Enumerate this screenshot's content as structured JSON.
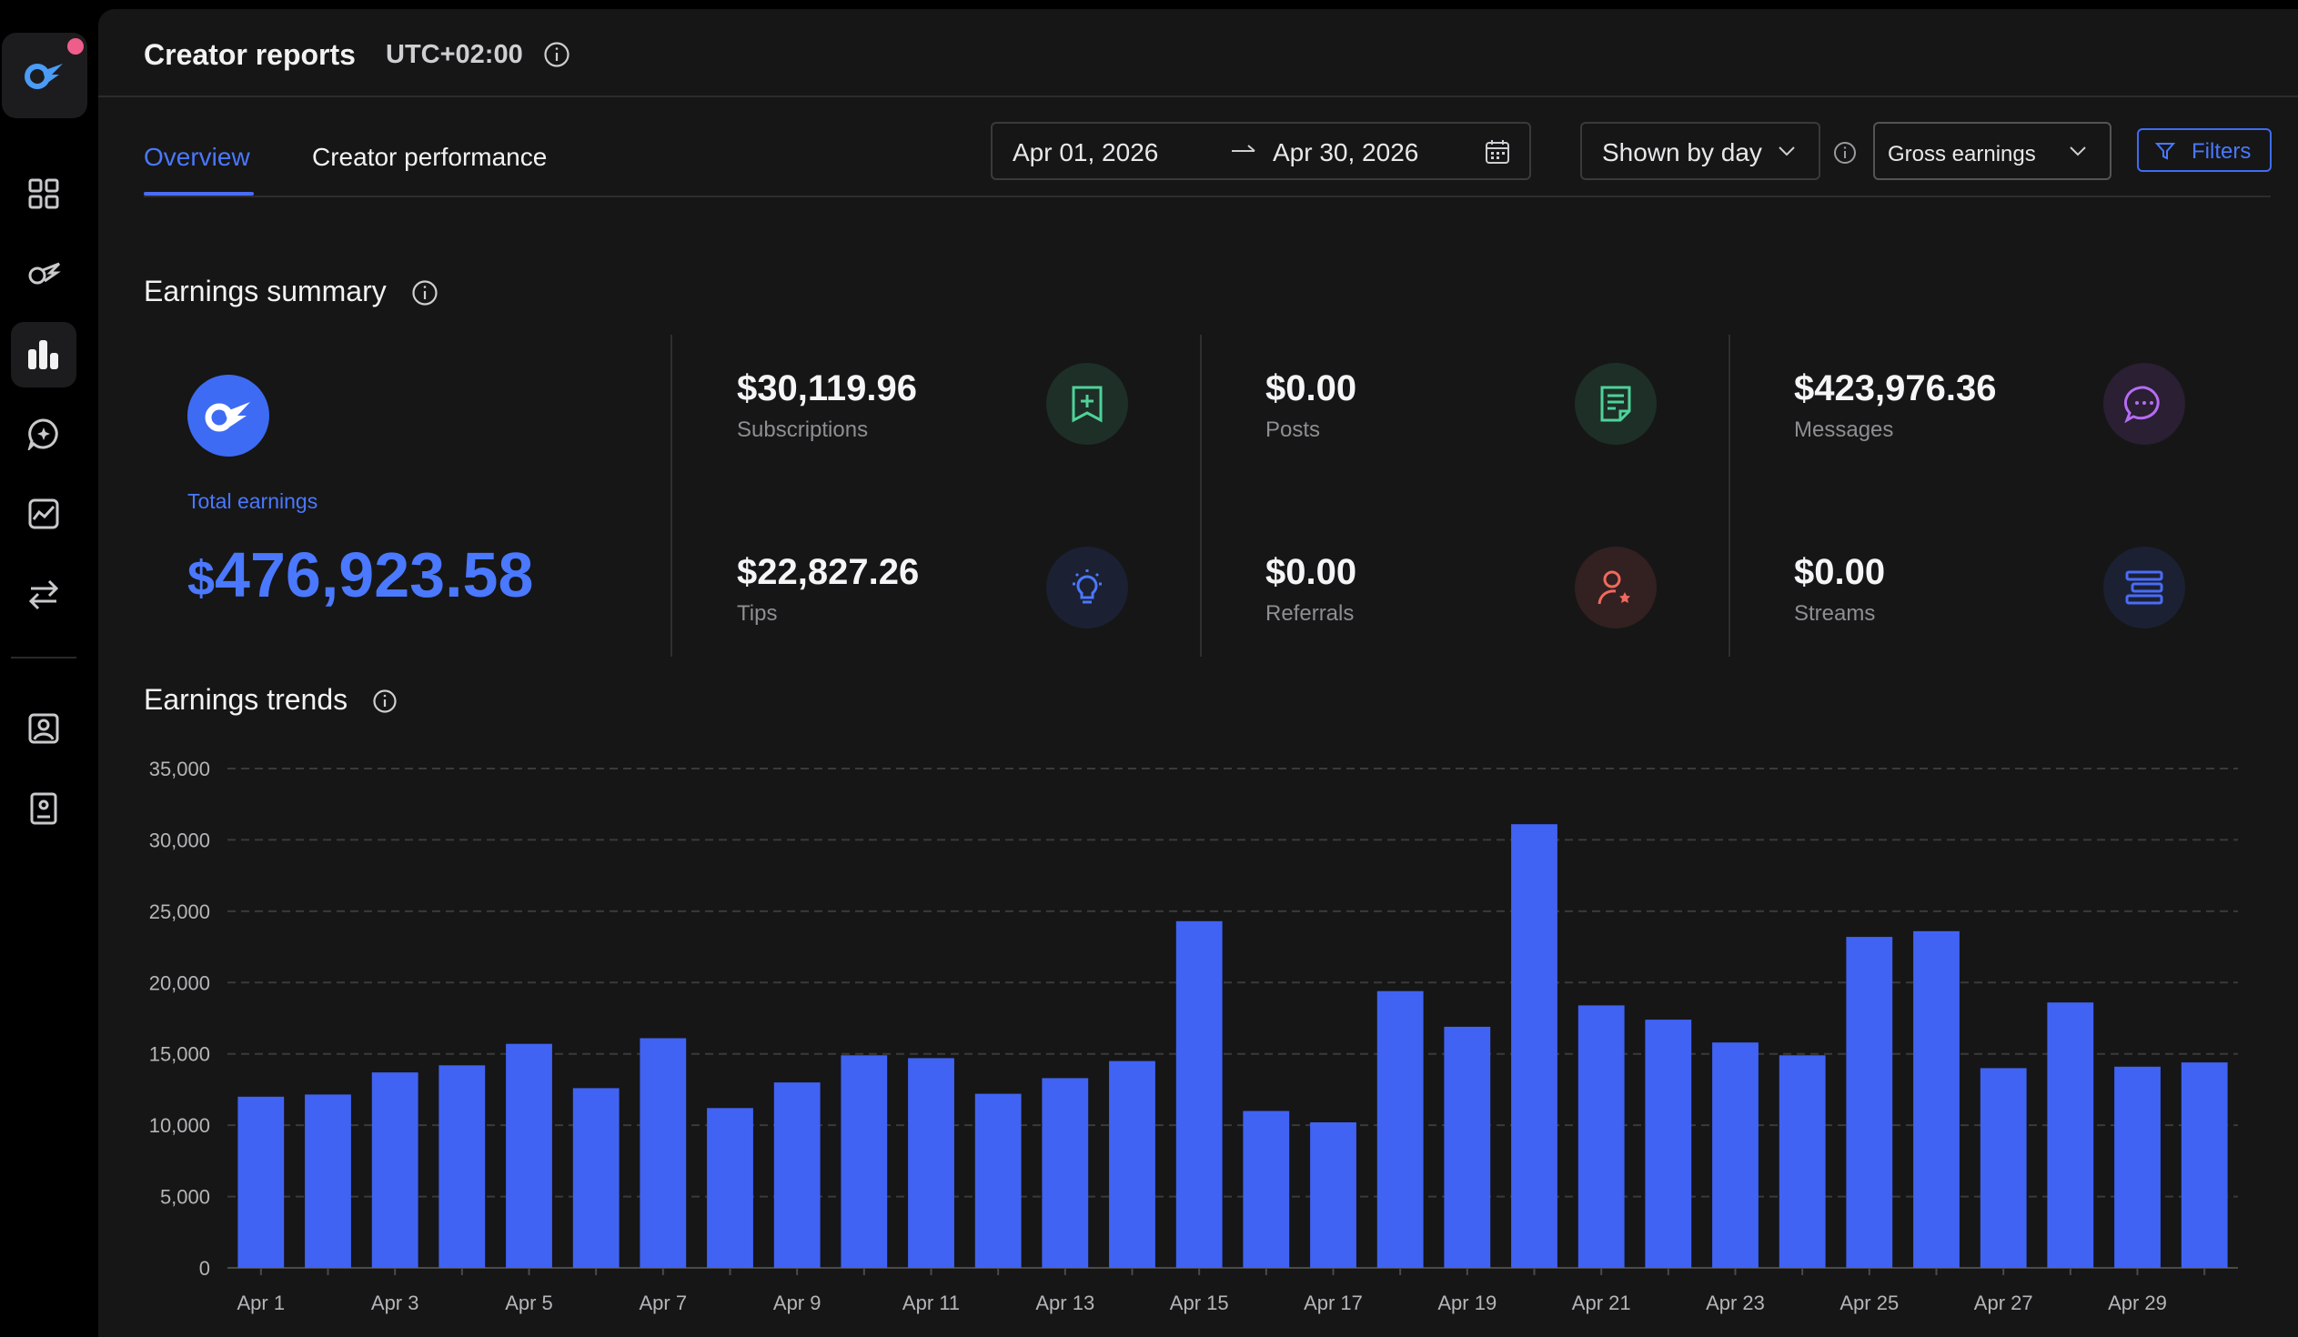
{
  "header": {
    "title": "Creator reports",
    "timezone": "UTC+02:00"
  },
  "tabs": [
    {
      "label": "Overview",
      "active": true
    },
    {
      "label": "Creator performance",
      "active": false
    }
  ],
  "date_range": {
    "from": "Apr 01, 2026",
    "to": "Apr 30, 2026"
  },
  "grouping": {
    "selected": "Shown by day"
  },
  "metric_select": {
    "selected": "Gross earnings"
  },
  "filters": {
    "label": "Filters"
  },
  "earnings_summary": {
    "title": "Earnings summary",
    "total": {
      "label": "Total earnings",
      "currency": "$",
      "value": "476,923.58"
    },
    "metrics": [
      {
        "label": "Subscriptions",
        "value": "$30,119.96",
        "icon": "subscription-icon",
        "color": "#4fd19a"
      },
      {
        "label": "Posts",
        "value": "$0.00",
        "icon": "document-icon",
        "color": "#4fd19a"
      },
      {
        "label": "Messages",
        "value": "$423,976.36",
        "icon": "chat-bubble-icon",
        "color": "#b56cf2"
      },
      {
        "label": "Tips",
        "value": "$22,827.26",
        "icon": "lightbulb-icon",
        "color": "#4a78ff"
      },
      {
        "label": "Referrals",
        "value": "$0.00",
        "icon": "user-star-icon",
        "color": "#ee6a5e"
      },
      {
        "label": "Streams",
        "value": "$0.00",
        "icon": "stream-icon",
        "color": "#4a6cf7"
      }
    ]
  },
  "earnings_trends": {
    "title": "Earnings trends"
  },
  "colors": {
    "accent": "#4a6cf7",
    "bar": "#4163f3",
    "background": "#161616"
  },
  "chart_data": {
    "type": "bar",
    "title": "",
    "xlabel": "",
    "ylabel": "",
    "ylim": [
      0,
      35000
    ],
    "yticks": [
      "0",
      "5,000",
      "10,000",
      "15,000",
      "20,000",
      "25,000",
      "30,000",
      "35,000"
    ],
    "grid": true,
    "categories": [
      "Apr 1",
      "Apr 2",
      "Apr 3",
      "Apr 4",
      "Apr 5",
      "Apr 6",
      "Apr 7",
      "Apr 8",
      "Apr 9",
      "Apr 10",
      "Apr 11",
      "Apr 12",
      "Apr 13",
      "Apr 14",
      "Apr 15",
      "Apr 16",
      "Apr 17",
      "Apr 18",
      "Apr 19",
      "Apr 20",
      "Apr 21",
      "Apr 22",
      "Apr 23",
      "Apr 24",
      "Apr 25",
      "Apr 26",
      "Apr 27",
      "Apr 28",
      "Apr 29",
      "Apr 30"
    ],
    "xtick_labels": [
      "Apr 1",
      "Apr 3",
      "Apr 5",
      "Apr 7",
      "Apr 9",
      "Apr 11",
      "Apr 13",
      "Apr 15",
      "Apr 17",
      "Apr 19",
      "Apr 21",
      "Apr 23",
      "Apr 25",
      "Apr 27",
      "Apr 29"
    ],
    "values": [
      12000,
      12150,
      13700,
      14200,
      15700,
      12600,
      16100,
      11200,
      13000,
      14900,
      14700,
      12200,
      13300,
      14500,
      24300,
      11000,
      10200,
      19400,
      16900,
      31100,
      18400,
      17400,
      15800,
      14900,
      23200,
      23600,
      14000,
      18600,
      14100,
      14400
    ]
  }
}
